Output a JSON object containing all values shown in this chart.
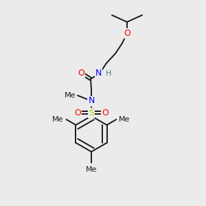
{
  "bg_color": "#ebebeb",
  "bond_color": "#1a1a1a",
  "N_color": "#0000ff",
  "O_color": "#ff0000",
  "S_color": "#cccc00",
  "H_color": "#4d8080",
  "figsize": [
    3.0,
    3.0
  ],
  "dpi": 100,
  "xlim": [
    0,
    300
  ],
  "ylim": [
    0,
    300
  ]
}
